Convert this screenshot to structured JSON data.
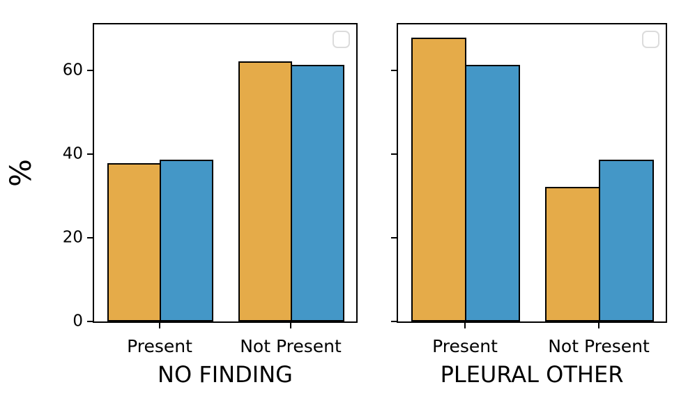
{
  "figure": {
    "ylabel": "%",
    "background_color": "#ffffff",
    "axis_color": "#000000",
    "text_color": "#000000",
    "legend_border_color": "#dcdcdc"
  },
  "chart_data": [
    {
      "type": "bar",
      "subplot": "left",
      "title": "",
      "xlabel": "NO FINDING",
      "ylabel": "%",
      "categories": [
        "Present",
        "Not Present"
      ],
      "series": [
        {
          "name": "orange",
          "color": "#E5AB49",
          "values": [
            37.9,
            62.1
          ]
        },
        {
          "name": "blue",
          "color": "#4497C7",
          "values": [
            38.7,
            61.3
          ]
        }
      ],
      "ylim": [
        0,
        71
      ],
      "yticks": [
        0,
        20,
        40,
        60
      ],
      "show_ytick_labels": true,
      "grid": false,
      "legend": "empty-box-upper-right"
    },
    {
      "type": "bar",
      "subplot": "right",
      "title": "",
      "xlabel": "PLEURAL OTHER",
      "ylabel": "",
      "categories": [
        "Present",
        "Not Present"
      ],
      "series": [
        {
          "name": "orange",
          "color": "#E5AB49",
          "values": [
            67.9,
            32.1
          ]
        },
        {
          "name": "blue",
          "color": "#4497C7",
          "values": [
            61.4,
            38.6
          ]
        }
      ],
      "ylim": [
        0,
        71
      ],
      "yticks": [
        0,
        20,
        40,
        60
      ],
      "show_ytick_labels": false,
      "grid": false,
      "legend": "empty-box-upper-right"
    }
  ]
}
